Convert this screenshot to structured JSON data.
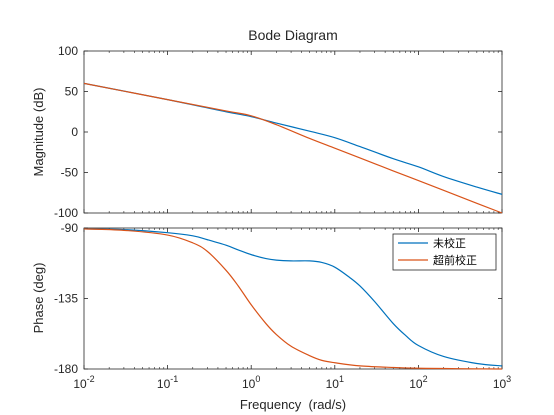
{
  "chart_data": [
    {
      "type": "line",
      "panel": "magnitude",
      "title": "Bode Diagram",
      "xlabel": "Frequency  (rad/s)",
      "ylabel": "Magnitude (dB)",
      "xscale": "log",
      "xlim": [
        0.01,
        1000
      ],
      "ylim": [
        -100,
        100
      ],
      "yticks": [
        -100,
        -50,
        0,
        50,
        100
      ],
      "grid": false,
      "series": [
        {
          "name": "未校正",
          "color": "#0072BD",
          "x": [
            0.01,
            0.1,
            0.5,
            1,
            2,
            5,
            10,
            20,
            50,
            100,
            200,
            500,
            1000
          ],
          "y": [
            60,
            40,
            25,
            19,
            11,
            1,
            -7,
            -18,
            -33,
            -43,
            -55,
            -68,
            -77
          ]
        },
        {
          "name": "超前校正",
          "color": "#D95319",
          "x": [
            0.01,
            0.1,
            0.5,
            1,
            2,
            5,
            10,
            20,
            50,
            100,
            200,
            500,
            1000
          ],
          "y": [
            60,
            40,
            26,
            20,
            9,
            -8,
            -20,
            -32,
            -48,
            -60,
            -72,
            -88,
            -100
          ]
        }
      ]
    },
    {
      "type": "line",
      "panel": "phase",
      "xlabel": "Frequency  (rad/s)",
      "ylabel": "Phase (deg)",
      "xscale": "log",
      "xlim": [
        0.01,
        1000
      ],
      "ylim": [
        -180,
        -90
      ],
      "yticks": [
        -180,
        -135,
        -90
      ],
      "grid": false,
      "legend": "top-right",
      "series": [
        {
          "name": "未校正",
          "color": "#0072BD",
          "x": [
            0.01,
            0.03,
            0.1,
            0.2,
            0.3,
            0.5,
            0.7,
            1,
            1.5,
            2,
            3,
            5,
            7,
            10,
            15,
            20,
            30,
            50,
            70,
            100,
            200,
            500,
            1000
          ],
          "y": [
            -90.6,
            -91,
            -93,
            -95,
            -97.5,
            -101,
            -104,
            -107,
            -109.5,
            -110.5,
            -111,
            -111,
            -112,
            -115,
            -121.5,
            -127,
            -137,
            -151,
            -158.5,
            -165,
            -172,
            -176.5,
            -178
          ]
        },
        {
          "name": "超前校正",
          "color": "#D95319",
          "x": [
            0.01,
            0.03,
            0.1,
            0.2,
            0.3,
            0.5,
            0.7,
            1,
            1.5,
            2,
            3,
            5,
            7,
            10,
            20,
            50,
            100,
            200,
            500,
            1000
          ],
          "y": [
            -90.6,
            -91.5,
            -94.5,
            -99.5,
            -105,
            -117,
            -127,
            -139,
            -151,
            -158,
            -165.5,
            -171.5,
            -174.5,
            -176,
            -178,
            -179,
            -179.5,
            -179.7,
            -179.9,
            -180
          ]
        }
      ]
    }
  ],
  "x_tick_labels": {
    "bases": [
      "10",
      "10",
      "10",
      "10",
      "10",
      "10"
    ],
    "exponents": [
      "-2",
      "-1",
      "0",
      "1",
      "2",
      "3"
    ]
  },
  "mag_tick_labels": [
    "-100",
    "-50",
    "0",
    "50",
    "100"
  ],
  "phase_tick_labels": [
    "-180",
    "-135",
    "-90"
  ],
  "legend": {
    "items": [
      "未校正",
      "超前校正"
    ]
  }
}
